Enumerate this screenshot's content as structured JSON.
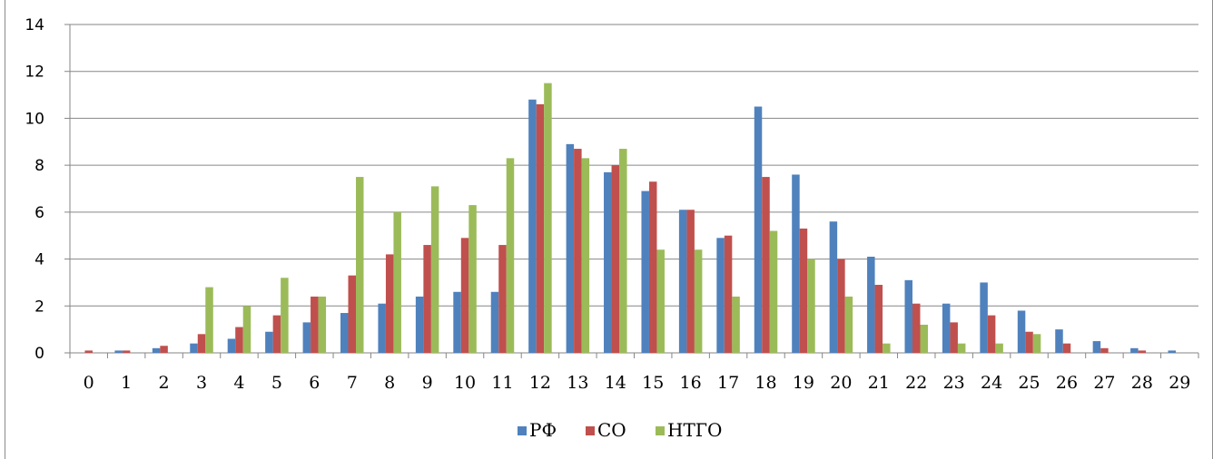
{
  "chart_data": {
    "type": "bar",
    "categories": [
      "0",
      "1",
      "2",
      "3",
      "4",
      "5",
      "6",
      "7",
      "8",
      "9",
      "10",
      "11",
      "12",
      "13",
      "14",
      "15",
      "16",
      "17",
      "18",
      "19",
      "20",
      "21",
      "22",
      "23",
      "24",
      "25",
      "26",
      "27",
      "28",
      "29"
    ],
    "series": [
      {
        "name": "РФ",
        "color": "#4f81bd",
        "values": [
          0,
          0.1,
          0.2,
          0.4,
          0.6,
          0.9,
          1.3,
          1.7,
          2.1,
          2.4,
          2.6,
          2.6,
          10.8,
          8.9,
          7.7,
          6.9,
          6.1,
          4.9,
          10.5,
          7.6,
          5.6,
          4.1,
          3.1,
          2.1,
          3.0,
          1.8,
          1.0,
          0.5,
          0.2,
          0.1
        ]
      },
      {
        "name": "СО",
        "color": "#c0504d",
        "values": [
          0.1,
          0.1,
          0.3,
          0.8,
          1.1,
          1.6,
          2.4,
          3.3,
          4.2,
          4.6,
          4.9,
          4.6,
          10.6,
          8.7,
          8.0,
          7.3,
          6.1,
          5.0,
          7.5,
          5.3,
          4.0,
          2.9,
          2.1,
          1.3,
          1.6,
          0.9,
          0.4,
          0.2,
          0.1,
          0
        ]
      },
      {
        "name": "НТГО",
        "color": "#9bbb59",
        "values": [
          0,
          0,
          0,
          2.8,
          2.0,
          3.2,
          2.4,
          7.5,
          6.0,
          7.1,
          6.3,
          8.3,
          11.5,
          8.3,
          8.7,
          4.4,
          4.4,
          2.4,
          5.2,
          4.0,
          2.4,
          0.4,
          1.2,
          0.4,
          0.4,
          0.8,
          0,
          0,
          0,
          0
        ]
      }
    ],
    "yticks": [
      "0",
      "2",
      "4",
      "6",
      "8",
      "10",
      "12",
      "14"
    ],
    "ylim": [
      0,
      14
    ],
    "grid": true,
    "legend_position": "bottom"
  }
}
